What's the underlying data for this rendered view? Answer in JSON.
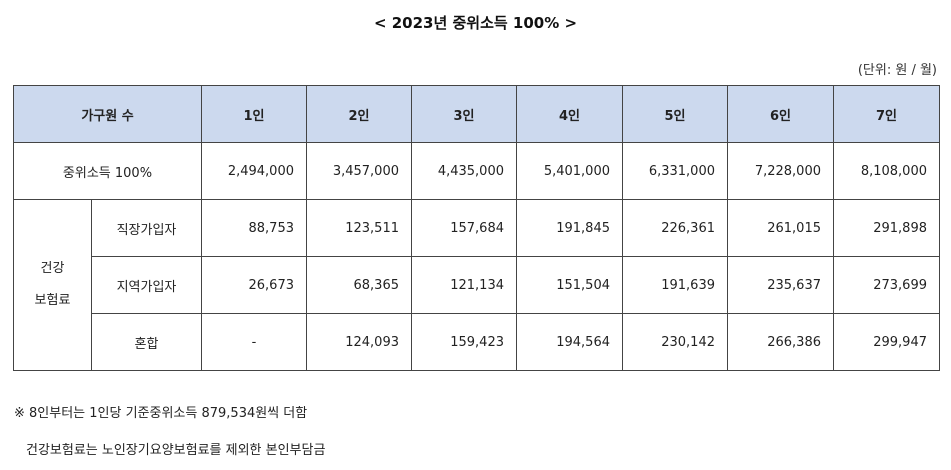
{
  "title": "< 2023년 중위소득 100% >",
  "unit": "(단위: 원 / 월)",
  "table": {
    "headers": [
      "가구원 수",
      "1인",
      "2인",
      "3인",
      "4인",
      "5인",
      "6인",
      "7인"
    ],
    "median_income": {
      "label": "중위소득 100%",
      "values": [
        "2,494,000",
        "3,457,000",
        "4,435,000",
        "5,401,000",
        "6,331,000",
        "7,228,000",
        "8,108,000"
      ]
    },
    "health_insurance": {
      "group_label_line1": "건강",
      "group_label_line2": "보험료",
      "rows": [
        {
          "label": "직장가입자",
          "values": [
            "88,753",
            "123,511",
            "157,684",
            "191,845",
            "226,361",
            "261,015",
            "291,898"
          ]
        },
        {
          "label": "지역가입자",
          "values": [
            "26,673",
            "68,365",
            "121,134",
            "151,504",
            "191,639",
            "235,637",
            "273,699"
          ]
        },
        {
          "label": "혼합",
          "values": [
            "-",
            "124,093",
            "159,423",
            "194,564",
            "230,142",
            "266,386",
            "299,947"
          ]
        }
      ]
    }
  },
  "notes": [
    "※ 8인부터는 1인당 기준중위소득 879,534원씩 더함",
    "건강보험료는 노인장기요양보험료를 제외한 본인부담금"
  ]
}
